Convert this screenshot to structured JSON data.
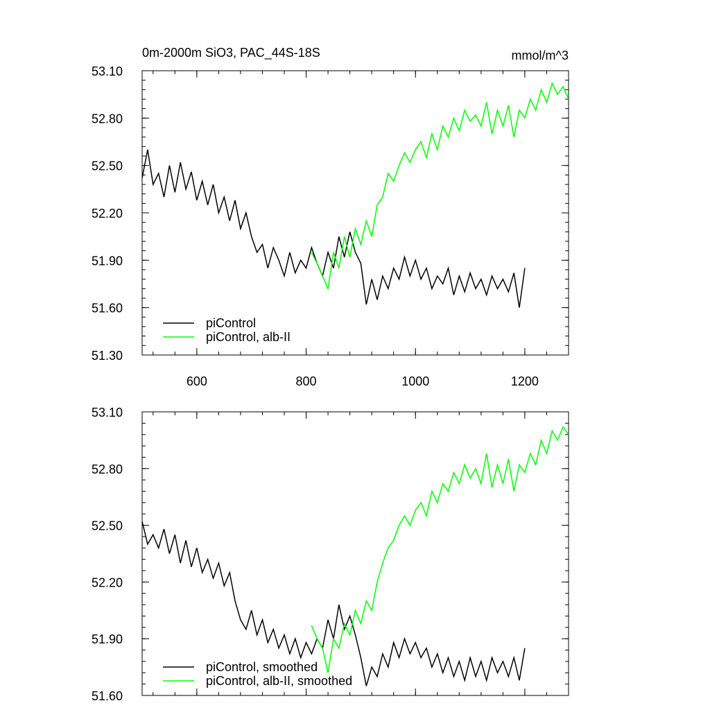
{
  "figure": {
    "title": "0m-2000m SiO3, PAC_44S-18S",
    "units": "mmol/m^3"
  },
  "chart_data": [
    {
      "type": "line",
      "title": "0m-2000m SiO3, PAC_44S-18S",
      "units_label": "mmol/m^3",
      "xlabel": "",
      "ylabel": "",
      "xlim": [
        500,
        1280
      ],
      "ylim": [
        51.3,
        53.1
      ],
      "x_ticks": [
        600,
        800,
        1000,
        1200
      ],
      "x_tick_labels": [
        "600",
        "800",
        "1000",
        "1200"
      ],
      "y_ticks": [
        51.3,
        51.6,
        51.9,
        52.2,
        52.5,
        52.8,
        53.1
      ],
      "y_tick_labels": [
        "51.30",
        "51.60",
        "51.90",
        "52.20",
        "52.50",
        "52.80",
        "53.10"
      ],
      "legend_position": "bottom-left",
      "grid": false,
      "series": [
        {
          "name": "piControl",
          "color": "#000000",
          "x": [
            500,
            510,
            520,
            530,
            540,
            550,
            560,
            570,
            580,
            590,
            600,
            610,
            620,
            630,
            640,
            650,
            660,
            670,
            680,
            690,
            700,
            710,
            720,
            730,
            740,
            750,
            760,
            770,
            780,
            790,
            800,
            810,
            820,
            830,
            840,
            850,
            860,
            870,
            880,
            890,
            900,
            910,
            920,
            930,
            940,
            950,
            960,
            970,
            980,
            990,
            1000,
            1010,
            1020,
            1030,
            1040,
            1050,
            1060,
            1070,
            1080,
            1090,
            1100,
            1110,
            1120,
            1130,
            1140,
            1150,
            1160,
            1170,
            1180,
            1190,
            1200
          ],
          "y": [
            52.42,
            52.6,
            52.38,
            52.45,
            52.3,
            52.5,
            52.33,
            52.52,
            52.35,
            52.46,
            52.28,
            52.4,
            52.25,
            52.38,
            52.2,
            52.3,
            52.15,
            52.28,
            52.1,
            52.2,
            52.05,
            51.95,
            52.0,
            51.85,
            51.98,
            51.9,
            51.8,
            51.95,
            51.82,
            51.9,
            51.85,
            51.98,
            51.88,
            51.8,
            51.95,
            51.85,
            52.05,
            51.92,
            52.08,
            51.95,
            51.88,
            51.62,
            51.78,
            51.65,
            51.8,
            51.72,
            51.85,
            51.78,
            51.92,
            51.8,
            51.9,
            51.78,
            51.85,
            51.72,
            51.8,
            51.75,
            51.85,
            51.68,
            51.8,
            51.7,
            51.82,
            51.72,
            51.78,
            51.68,
            51.8,
            51.72,
            51.78,
            51.7,
            51.82,
            51.6,
            51.85
          ]
        },
        {
          "name": "piControl, alb-II",
          "color": "#00ff00",
          "x": [
            810,
            820,
            830,
            840,
            850,
            860,
            870,
            880,
            890,
            900,
            910,
            920,
            930,
            940,
            950,
            960,
            970,
            980,
            990,
            1000,
            1010,
            1020,
            1030,
            1040,
            1050,
            1060,
            1070,
            1080,
            1090,
            1100,
            1110,
            1120,
            1130,
            1140,
            1150,
            1160,
            1170,
            1180,
            1190,
            1200,
            1210,
            1220,
            1230,
            1240,
            1250,
            1260,
            1270,
            1280
          ],
          "y": [
            51.95,
            51.88,
            51.8,
            51.72,
            51.95,
            51.85,
            52.05,
            51.92,
            52.1,
            52.0,
            52.15,
            52.05,
            52.25,
            52.3,
            52.45,
            52.4,
            52.5,
            52.58,
            52.52,
            52.6,
            52.65,
            52.55,
            52.7,
            52.6,
            52.75,
            52.68,
            52.8,
            52.72,
            52.85,
            52.78,
            52.82,
            52.75,
            52.9,
            52.7,
            52.85,
            52.75,
            52.88,
            52.68,
            52.85,
            52.8,
            52.92,
            52.85,
            52.98,
            52.9,
            53.02,
            52.95,
            53.0,
            52.92
          ]
        }
      ]
    },
    {
      "type": "line",
      "title": "",
      "xlabel": "",
      "ylabel": "",
      "xlim": [
        500,
        1280
      ],
      "ylim": [
        51.6,
        53.1
      ],
      "x_ticks": [
        600,
        800,
        1000,
        1200
      ],
      "y_ticks": [
        51.6,
        51.9,
        52.2,
        52.5,
        52.8,
        53.1
      ],
      "y_tick_labels": [
        "51.60",
        "51.90",
        "52.20",
        "52.50",
        "52.80",
        "53.10"
      ],
      "legend_position": "bottom-left",
      "grid": false,
      "series": [
        {
          "name": "piControl, smoothed",
          "color": "#000000",
          "x": [
            500,
            510,
            520,
            530,
            540,
            550,
            560,
            570,
            580,
            590,
            600,
            610,
            620,
            630,
            640,
            650,
            660,
            670,
            680,
            690,
            700,
            710,
            720,
            730,
            740,
            750,
            760,
            770,
            780,
            790,
            800,
            810,
            820,
            830,
            840,
            850,
            860,
            870,
            880,
            890,
            900,
            910,
            920,
            930,
            940,
            950,
            960,
            970,
            980,
            990,
            1000,
            1010,
            1020,
            1030,
            1040,
            1050,
            1060,
            1070,
            1080,
            1090,
            1100,
            1110,
            1120,
            1130,
            1140,
            1150,
            1160,
            1170,
            1180,
            1190,
            1200
          ],
          "y": [
            52.52,
            52.4,
            52.45,
            52.38,
            52.48,
            52.35,
            52.45,
            52.3,
            52.42,
            52.28,
            52.38,
            52.25,
            52.32,
            52.22,
            52.3,
            52.18,
            52.25,
            52.1,
            52.0,
            51.95,
            52.05,
            51.92,
            52.0,
            51.88,
            51.95,
            51.85,
            51.92,
            51.82,
            51.9,
            51.8,
            51.88,
            51.82,
            51.9,
            51.85,
            52.0,
            51.9,
            52.08,
            51.95,
            52.02,
            51.92,
            51.8,
            51.65,
            51.75,
            51.7,
            51.82,
            51.75,
            51.88,
            51.8,
            51.9,
            51.82,
            51.88,
            51.8,
            51.85,
            51.75,
            51.82,
            51.72,
            51.8,
            51.7,
            51.78,
            51.68,
            51.8,
            51.7,
            51.78,
            51.68,
            51.8,
            51.72,
            51.78,
            51.7,
            51.8,
            51.68,
            51.85
          ]
        },
        {
          "name": "piControl, alb-II, smoothed",
          "color": "#00ff00",
          "x": [
            810,
            820,
            830,
            840,
            850,
            860,
            870,
            880,
            890,
            900,
            910,
            920,
            930,
            940,
            950,
            960,
            970,
            980,
            990,
            1000,
            1010,
            1020,
            1030,
            1040,
            1050,
            1060,
            1070,
            1080,
            1090,
            1100,
            1110,
            1120,
            1130,
            1140,
            1150,
            1160,
            1170,
            1180,
            1190,
            1200,
            1210,
            1220,
            1230,
            1240,
            1250,
            1260,
            1270,
            1280
          ],
          "y": [
            51.97,
            51.9,
            51.85,
            51.72,
            51.9,
            51.85,
            51.98,
            51.92,
            52.05,
            51.98,
            52.1,
            52.05,
            52.2,
            52.3,
            52.38,
            52.42,
            52.5,
            52.55,
            52.5,
            52.58,
            52.62,
            52.55,
            52.68,
            52.62,
            52.72,
            52.68,
            52.78,
            52.72,
            52.82,
            52.75,
            52.8,
            52.72,
            52.88,
            52.7,
            52.82,
            52.72,
            52.85,
            52.68,
            52.82,
            52.78,
            52.88,
            52.82,
            52.95,
            52.88,
            53.0,
            52.95,
            53.02,
            52.98
          ]
        }
      ]
    }
  ]
}
